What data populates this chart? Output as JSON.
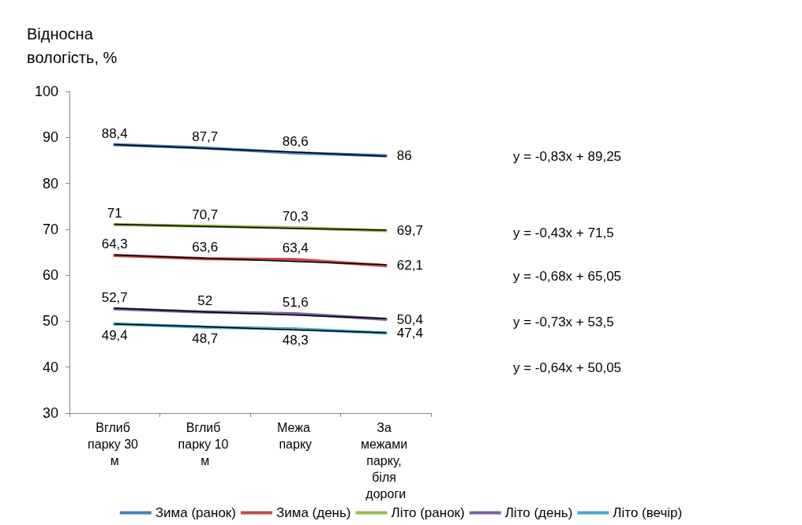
{
  "chart_data": {
    "type": "line",
    "ylabel": "Відносна вологість, %",
    "categories": [
      "Вглиб парку 30 м",
      "Вглиб парку 10 м",
      "Межа парку",
      "За межами парку, біля дороги"
    ],
    "series": [
      {
        "name": "Зима (ранок)",
        "color": "#4a7ebb",
        "values": [
          88.4,
          87.7,
          86.6,
          86
        ],
        "value_labels": [
          "88,4",
          "87,7",
          "86,6",
          "86"
        ]
      },
      {
        "name": "Зима (день)",
        "color": "#be4b48",
        "values": [
          64.3,
          63.6,
          63.4,
          62.1
        ],
        "value_labels": [
          "64,3",
          "63,6",
          "63,4",
          "62,1"
        ]
      },
      {
        "name": "Літо (ранок)",
        "color": "#98b954",
        "values": [
          71,
          70.7,
          70.3,
          69.7
        ],
        "value_labels": [
          "71",
          "70,7",
          "70,3",
          "69,7"
        ]
      },
      {
        "name": "Літо (день)",
        "color": "#7d60a0",
        "values": [
          52.7,
          52,
          51.6,
          50.4
        ],
        "value_labels": [
          "52,7",
          "52",
          "51,6",
          "50,4"
        ]
      },
      {
        "name": "Літо (вечір)",
        "color": "#46aac5",
        "values": [
          49.4,
          48.7,
          48.3,
          47.4
        ],
        "value_labels": [
          "49,4",
          "48,7",
          "48,3",
          "47,4"
        ]
      },
      {
        "type": "line",
        "color": "#000000",
        "values": [
          88.4,
          87.6,
          86.8,
          85.9
        ]
      },
      {
        "type": "line",
        "color": "#000000",
        "values": [
          71.1,
          70.6,
          70.2,
          69.8
        ]
      },
      {
        "type": "line",
        "color": "#000000",
        "values": [
          64.4,
          63.7,
          63.0,
          62.3
        ]
      },
      {
        "type": "line",
        "color": "#000000",
        "values": [
          52.8,
          52.0,
          51.3,
          50.6
        ]
      },
      {
        "type": "line",
        "color": "#000000",
        "values": [
          49.4,
          48.8,
          48.1,
          47.5
        ]
      }
    ],
    "ylim": [
      30,
      100
    ],
    "yticks": [
      30,
      40,
      50,
      60,
      70,
      80,
      90,
      100
    ],
    "marker": "none",
    "legend": "bottom",
    "grid": false,
    "annotations": [
      "y = -0,83x + 89,25",
      "y = -0,43x + 71,5",
      "y = -0,68x + 65,05",
      "y = -0,73x + 53,5",
      "y = -0,64x + 50,05"
    ]
  }
}
